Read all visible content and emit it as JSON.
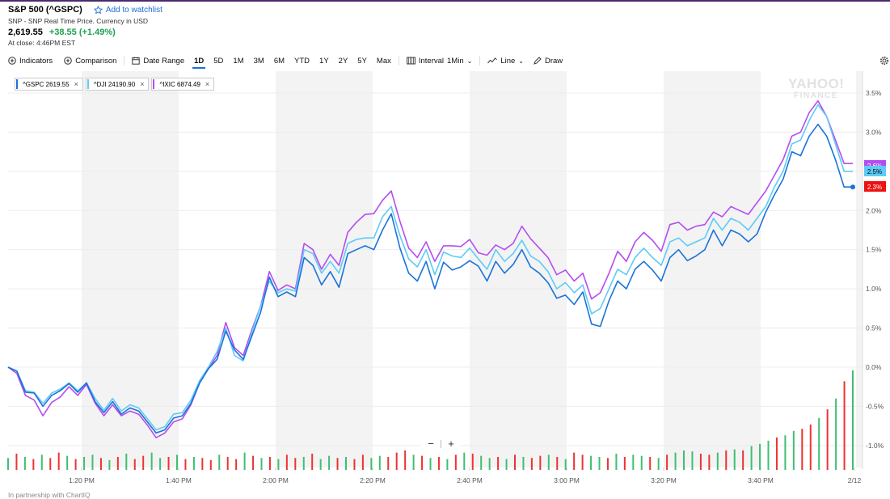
{
  "header": {
    "title": "S&P 500 (^GSPC)",
    "watchlist_label": "Add to watchlist",
    "subtitle": "SNP - SNP Real Time Price. Currency in USD",
    "price": "2,619.55",
    "change": "+38.55 (+1.49%)",
    "close_time": "At close: 4:46PM EST"
  },
  "toolbar": {
    "indicators": "Indicators",
    "comparison": "Comparison",
    "date_range": "Date Range",
    "ranges": [
      "1D",
      "5D",
      "1M",
      "3M",
      "6M",
      "YTD",
      "1Y",
      "2Y",
      "5Y",
      "Max"
    ],
    "active_range": "1D",
    "interval_label": "Interval",
    "interval_value": "1Min",
    "chart_type": "Line",
    "draw": "Draw"
  },
  "legend": [
    {
      "label": "^GSPC 2619.55",
      "color": "#1a73d9"
    },
    {
      "label": "^DJI 24190.90",
      "color": "#5ecbf5"
    },
    {
      "label": "^IXIC 6874.49",
      "color": "#b44df0"
    }
  ],
  "watermark": {
    "line1": "YAHOO!",
    "line2": "FINANCE"
  },
  "zoom": {
    "minus": "−",
    "plus": "+"
  },
  "credit": "In partnership with ChartIQ",
  "chart_data": {
    "type": "line",
    "x_ticks": [
      "1:20 PM",
      "1:40 PM",
      "2:00 PM",
      "2:20 PM",
      "2:40 PM",
      "3:00 PM",
      "3:20 PM",
      "3:40 PM",
      "2/12"
    ],
    "y_ticks": [
      "3.5%",
      "3.0%",
      "2.5%",
      "2.0%",
      "1.5%",
      "1.0%",
      "0.5%",
      "0.0%",
      "-0.5%",
      "-1.0%"
    ],
    "ylim": [
      -1.32,
      3.53
    ],
    "last_value_labels": [
      {
        "text": "2.6%",
        "color": "#b44df0"
      },
      {
        "text": "2.5%",
        "color": "#5ecbf5"
      },
      {
        "text": "2.3%",
        "color": "#ee1111"
      }
    ],
    "series": [
      {
        "name": "^GSPC",
        "color": "#1a73d9",
        "values": [
          0.0,
          -0.05,
          -0.32,
          -0.33,
          -0.5,
          -0.36,
          -0.3,
          -0.21,
          -0.32,
          -0.2,
          -0.44,
          -0.58,
          -0.44,
          -0.6,
          -0.52,
          -0.56,
          -0.7,
          -0.84,
          -0.8,
          -0.65,
          -0.62,
          -0.46,
          -0.2,
          -0.02,
          0.1,
          0.46,
          0.22,
          0.1,
          0.4,
          0.7,
          1.15,
          0.9,
          0.96,
          0.9,
          1.4,
          1.3,
          1.05,
          1.22,
          1.02,
          1.45,
          1.5,
          1.55,
          1.5,
          1.75,
          1.96,
          1.52,
          1.2,
          1.1,
          1.35,
          1.0,
          1.34,
          1.24,
          1.28,
          1.36,
          1.29,
          1.1,
          1.35,
          1.2,
          1.31,
          1.5,
          1.28,
          1.2,
          1.08,
          0.88,
          0.92,
          0.8,
          0.96,
          0.55,
          0.52,
          0.85,
          1.1,
          1.0,
          1.25,
          1.35,
          1.24,
          1.1,
          1.4,
          1.5,
          1.36,
          1.42,
          1.5,
          1.75,
          1.55,
          1.75,
          1.7,
          1.6,
          1.7,
          1.98,
          2.2,
          2.4,
          2.75,
          2.7,
          2.95,
          3.1,
          2.95,
          2.65,
          2.3,
          2.3
        ]
      },
      {
        "name": "^DJI",
        "color": "#5ecbf5",
        "values": [
          0.0,
          -0.05,
          -0.3,
          -0.32,
          -0.46,
          -0.33,
          -0.28,
          -0.2,
          -0.3,
          -0.2,
          -0.4,
          -0.55,
          -0.4,
          -0.56,
          -0.48,
          -0.52,
          -0.66,
          -0.8,
          -0.76,
          -0.6,
          -0.58,
          -0.42,
          -0.17,
          0.0,
          0.2,
          0.5,
          0.15,
          0.08,
          0.45,
          0.78,
          1.1,
          0.95,
          1.0,
          0.97,
          1.5,
          1.45,
          1.2,
          1.35,
          1.2,
          1.58,
          1.63,
          1.65,
          1.65,
          1.92,
          2.05,
          1.68,
          1.38,
          1.28,
          1.5,
          1.18,
          1.47,
          1.42,
          1.4,
          1.52,
          1.38,
          1.25,
          1.5,
          1.35,
          1.45,
          1.62,
          1.42,
          1.35,
          1.22,
          1.0,
          1.08,
          0.95,
          1.05,
          0.68,
          0.75,
          1.0,
          1.25,
          1.18,
          1.4,
          1.52,
          1.4,
          1.3,
          1.6,
          1.65,
          1.55,
          1.6,
          1.65,
          1.9,
          1.75,
          1.9,
          1.85,
          1.75,
          1.9,
          2.05,
          2.3,
          2.5,
          2.85,
          2.9,
          3.15,
          3.35,
          3.2,
          2.85,
          2.5,
          2.5
        ]
      },
      {
        "name": "^IXIC",
        "color": "#b44df0",
        "values": [
          0.0,
          -0.08,
          -0.36,
          -0.42,
          -0.62,
          -0.45,
          -0.38,
          -0.25,
          -0.36,
          -0.22,
          -0.46,
          -0.62,
          -0.48,
          -0.62,
          -0.56,
          -0.6,
          -0.74,
          -0.9,
          -0.84,
          -0.7,
          -0.66,
          -0.48,
          -0.2,
          -0.02,
          0.15,
          0.57,
          0.25,
          0.15,
          0.48,
          0.78,
          1.22,
          0.98,
          1.05,
          1.0,
          1.58,
          1.5,
          1.25,
          1.44,
          1.3,
          1.72,
          1.85,
          1.95,
          1.96,
          2.13,
          2.25,
          1.86,
          1.52,
          1.4,
          1.6,
          1.35,
          1.55,
          1.55,
          1.54,
          1.63,
          1.46,
          1.43,
          1.56,
          1.5,
          1.58,
          1.8,
          1.64,
          1.52,
          1.4,
          1.18,
          1.24,
          1.1,
          1.2,
          0.87,
          0.95,
          1.2,
          1.48,
          1.35,
          1.6,
          1.72,
          1.62,
          1.48,
          1.82,
          1.85,
          1.75,
          1.8,
          1.82,
          1.98,
          1.92,
          2.05,
          2.0,
          1.95,
          2.1,
          2.25,
          2.45,
          2.65,
          2.95,
          3.0,
          3.25,
          3.4,
          3.2,
          2.9,
          2.6,
          2.6
        ]
      }
    ],
    "volume": [
      0.55,
      0.75,
      0.6,
      0.5,
      0.7,
      0.55,
      0.8,
      0.65,
      0.5,
      0.6,
      0.7,
      0.55,
      0.45,
      0.6,
      0.75,
      0.5,
      0.65,
      0.8,
      0.55,
      0.6,
      0.7,
      0.5,
      0.6,
      0.55,
      0.45,
      0.7,
      0.6,
      0.5,
      0.8,
      0.65,
      0.55,
      0.6,
      0.5,
      0.7,
      0.55,
      0.6,
      0.75,
      0.5,
      0.65,
      0.55,
      0.6,
      0.5,
      0.7,
      0.55,
      0.65,
      0.6,
      0.8,
      0.9,
      0.7,
      0.65,
      0.55,
      0.6,
      0.5,
      0.7,
      0.8,
      0.75,
      0.65,
      0.55,
      0.6,
      0.5,
      0.7,
      0.6,
      0.55,
      0.65,
      0.7,
      0.6,
      0.5,
      0.8,
      0.7,
      0.65,
      0.6,
      0.55,
      0.75,
      0.6,
      0.7,
      0.65,
      0.6,
      0.55,
      0.7,
      0.8,
      0.9,
      0.85,
      0.75,
      0.7,
      0.8,
      0.9,
      0.95,
      0.9,
      1.1,
      1.2,
      1.35,
      1.5,
      1.6,
      1.8,
      1.9,
      2.1,
      2.4,
      2.8,
      3.3,
      4.1,
      4.6
    ],
    "volume_colors": [
      "g",
      "r",
      "g",
      "r",
      "g",
      "r",
      "r",
      "g",
      "r",
      "g",
      "g",
      "r",
      "g",
      "r",
      "g",
      "r",
      "r",
      "g",
      "g",
      "r",
      "g",
      "r",
      "g",
      "r",
      "r",
      "g",
      "r",
      "r",
      "g",
      "r",
      "g",
      "r",
      "g",
      "r",
      "r",
      "g",
      "r",
      "g",
      "g",
      "r",
      "g",
      "r",
      "r",
      "g",
      "g",
      "r",
      "r",
      "r",
      "g",
      "r",
      "g",
      "r",
      "g",
      "r",
      "g",
      "r",
      "g",
      "g",
      "r",
      "g",
      "r",
      "g",
      "r",
      "r",
      "g",
      "r",
      "g",
      "r",
      "r",
      "g",
      "g",
      "r",
      "g",
      "r",
      "g",
      "g",
      "r",
      "g",
      "r",
      "g",
      "g",
      "g",
      "r",
      "r",
      "g",
      "r",
      "g",
      "r",
      "g",
      "g",
      "g",
      "r",
      "g",
      "g",
      "r",
      "r",
      "g",
      "r",
      "g",
      "r",
      "g"
    ]
  }
}
